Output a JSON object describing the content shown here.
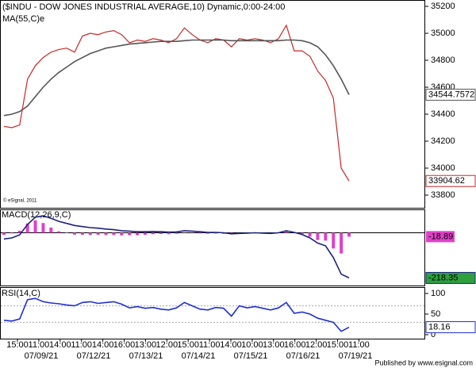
{
  "chart_data": [
    {
      "type": "line",
      "title": "($INDU - DOW JONES INDUSTRIAL AVERAGE,10) Dynamic,0:00-24:00",
      "credit": "© eSignal, 2011",
      "series": [
        {
          "color": "#c62828",
          "values": [
            34310,
            34300,
            34320,
            34660,
            34760,
            34820,
            34860,
            34880,
            34890,
            34860,
            34980,
            35000,
            34990,
            35010,
            35020,
            34990,
            34930,
            34950,
            34940,
            34960,
            34950,
            34930,
            34960,
            35040,
            34990,
            34950,
            34930,
            34960,
            34950,
            34900,
            34960,
            34950,
            34960,
            34950,
            34930,
            34960,
            35060,
            34870,
            34870,
            34830,
            34720,
            34650,
            34520,
            34000,
            33904.62
          ]
        },
        {
          "name": "MA(55,C)e",
          "color": "#555555",
          "values": [
            34390,
            34400,
            34420,
            34460,
            34530,
            34600,
            34660,
            34710,
            34750,
            34790,
            34820,
            34850,
            34870,
            34890,
            34900,
            34910,
            34920,
            34925,
            34930,
            34935,
            34940,
            34940,
            34940,
            34945,
            34950,
            34950,
            34950,
            34950,
            34950,
            34945,
            34945,
            34945,
            34945,
            34945,
            34945,
            34945,
            34950,
            34950,
            34945,
            34930,
            34900,
            34840,
            34760,
            34660,
            34544.7572
          ]
        }
      ],
      "ylim": [
        33706,
        35247
      ],
      "yticks": [
        33800,
        34000,
        34200,
        34400,
        34600,
        34800,
        35000,
        35200
      ]
    },
    {
      "type": "macd",
      "title": "MACD(12,26,9,C)",
      "series": [
        {
          "color": "#1a237e",
          "values": [
            -30,
            -25,
            -10,
            40,
            75,
            82,
            70,
            55,
            45,
            35,
            30,
            25,
            22,
            18,
            15,
            10,
            8,
            5,
            5,
            6,
            5,
            3,
            4,
            10,
            8,
            5,
            2,
            2,
            0,
            -5,
            -3,
            -2,
            0,
            -2,
            -3,
            0,
            10,
            2,
            -8,
            -25,
            -50,
            -63,
            -120,
            -200,
            -218.35
          ]
        }
      ],
      "histogram": {
        "color": "#e040c8",
        "values": [
          -10,
          -3,
          10,
          45,
          60,
          47,
          25,
          7,
          -2,
          -9,
          -10,
          -11,
          -10,
          -11,
          -11,
          -13,
          -12,
          -12,
          -10,
          -7,
          -6,
          -7,
          -5,
          1,
          -1,
          -3,
          -5,
          -4,
          -5,
          -8,
          -5,
          -3,
          -1,
          -2,
          -2,
          1,
          9,
          1,
          -7,
          -19,
          -35,
          -38,
          -76,
          -100,
          -18.89
        ]
      },
      "ylim": [
        -255,
        113
      ]
    },
    {
      "type": "line",
      "title": "RSI(14,C)",
      "series": [
        {
          "color": "#1f2fd1",
          "values": [
            35,
            33,
            38,
            85,
            88,
            80,
            77,
            75,
            72,
            70,
            78,
            80,
            76,
            78,
            80,
            74,
            65,
            68,
            64,
            66,
            62,
            60,
            65,
            78,
            70,
            62,
            60,
            66,
            64,
            45,
            70,
            65,
            68,
            64,
            60,
            65,
            78,
            52,
            55,
            50,
            40,
            35,
            30,
            8,
            18.16
          ]
        }
      ],
      "ylim": [
        -9.6,
        115.4
      ],
      "yticks": [
        0,
        50,
        100
      ],
      "levels": [
        30,
        70
      ]
    }
  ],
  "x_axis": {
    "times": [
      "15:00",
      "11:00",
      "14:00",
      "11:00",
      "14:00",
      "16:00",
      "13:00",
      "12:00",
      "15:00",
      "11:00",
      "14:00",
      "10:00",
      "13:00",
      "16:00",
      "12:00",
      "15:00",
      "11:00"
    ],
    "dates": [
      "07/09/21",
      "07/12/21",
      "07/13/21",
      "07/14/21",
      "07/15/21",
      "07/16/21",
      "07/19/21"
    ]
  },
  "footer": "Published by www.esignal.com"
}
